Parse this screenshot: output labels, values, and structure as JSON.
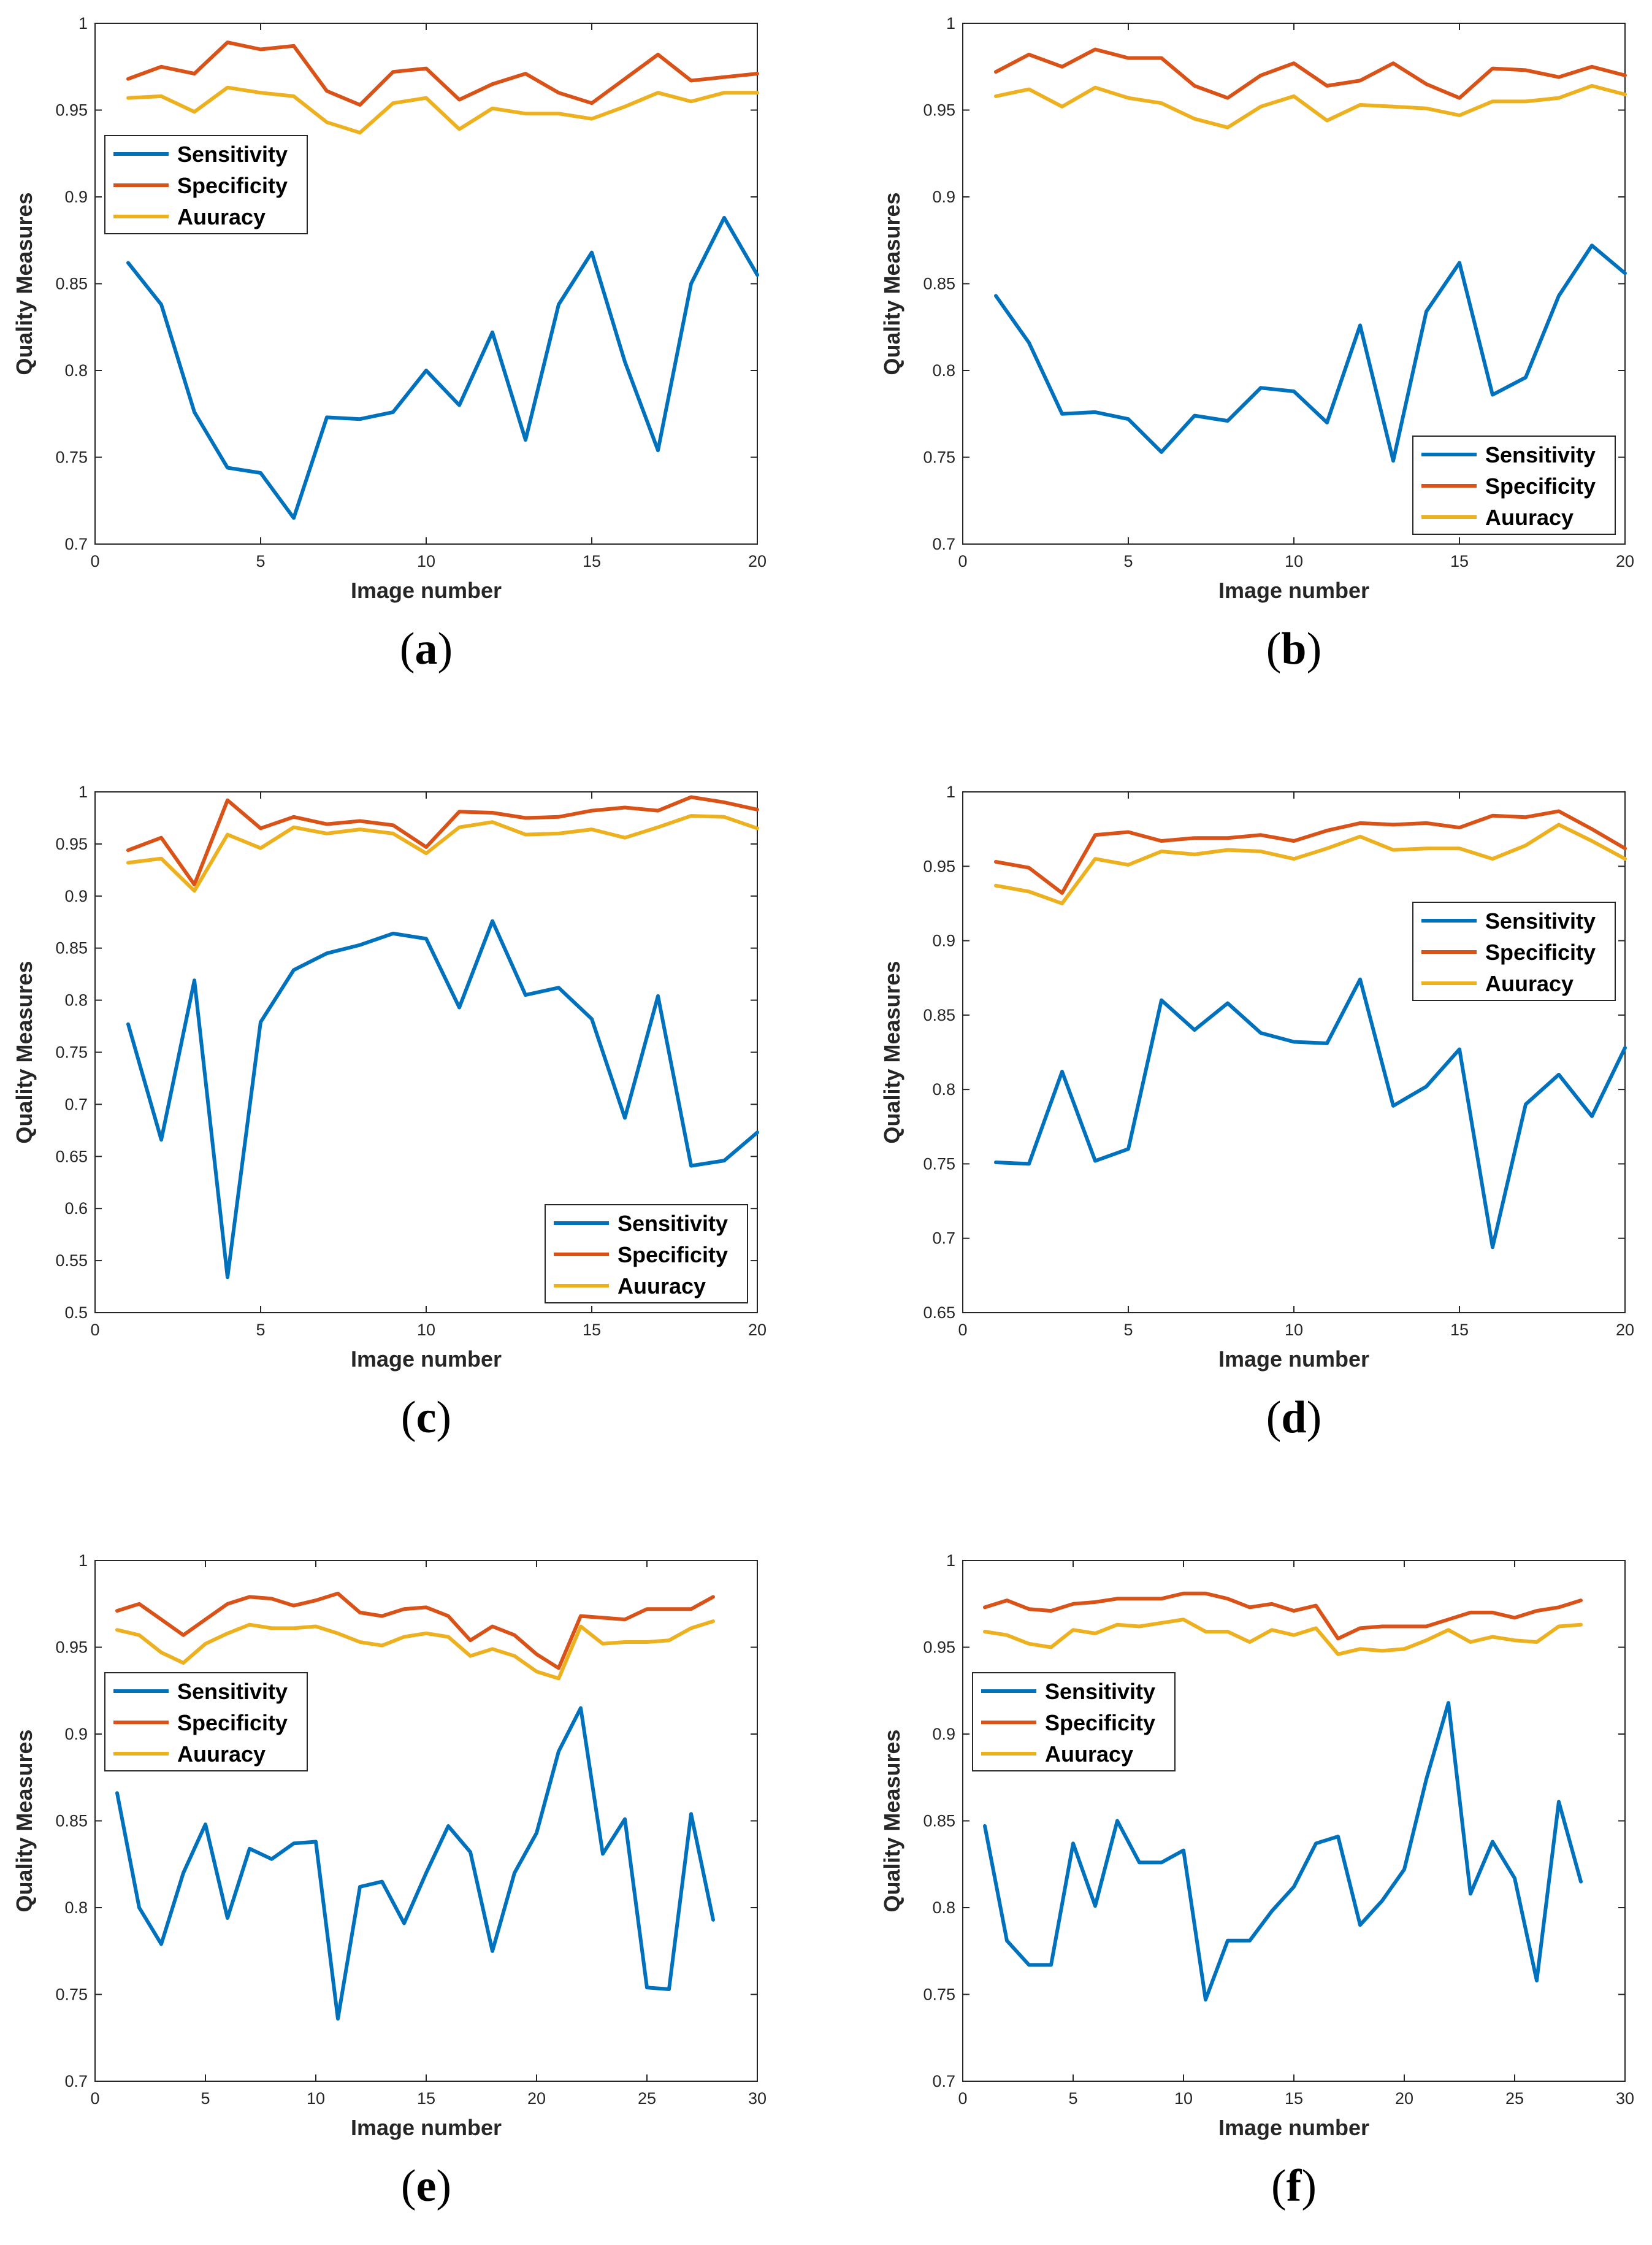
{
  "colors": {
    "sensitivity": "#0072BD",
    "specificity": "#D95319",
    "accuracy": "#EDB120",
    "axis": "#262626"
  },
  "chart_data": [
    {
      "type": "line",
      "panel_label": "a",
      "xlabel": "Image number",
      "ylabel": "Quality Measures",
      "xlim": [
        0,
        20
      ],
      "ylim": [
        0.7,
        1
      ],
      "xticks": [
        "0",
        "5",
        "10",
        "15",
        "20"
      ],
      "yticks": [
        "0.7",
        "0.75",
        "0.8",
        "0.85",
        "0.9",
        "0.95",
        "1"
      ],
      "legend_position": "left",
      "x": [
        1,
        2,
        3,
        4,
        5,
        6,
        7,
        8,
        9,
        10,
        11,
        12,
        13,
        14,
        15,
        16,
        17,
        18,
        19,
        20
      ],
      "series": [
        {
          "name": "Sensitivity",
          "values": [
            0.862,
            0.838,
            0.776,
            0.744,
            0.741,
            0.715,
            0.773,
            0.772,
            0.776,
            0.8,
            0.78,
            0.822,
            0.76,
            0.838,
            0.868,
            0.805,
            0.754,
            0.85,
            0.888,
            0.855
          ]
        },
        {
          "name": "Specificity",
          "values": [
            0.968,
            0.975,
            0.971,
            0.989,
            0.985,
            0.987,
            0.961,
            0.953,
            0.972,
            0.974,
            0.956,
            0.965,
            0.971,
            0.96,
            0.954,
            0.968,
            0.982,
            0.967,
            0.969,
            0.971
          ]
        },
        {
          "name": "Auuracy",
          "values": [
            0.957,
            0.958,
            0.949,
            0.963,
            0.96,
            0.958,
            0.943,
            0.937,
            0.954,
            0.957,
            0.939,
            0.951,
            0.948,
            0.948,
            0.945,
            0.952,
            0.96,
            0.955,
            0.96,
            0.96
          ]
        }
      ]
    },
    {
      "type": "line",
      "panel_label": "b",
      "xlabel": "Image number",
      "ylabel": "Quality Measures",
      "xlim": [
        0,
        20
      ],
      "ylim": [
        0.7,
        1
      ],
      "xticks": [
        "0",
        "5",
        "10",
        "15",
        "20"
      ],
      "yticks": [
        "0.7",
        "0.75",
        "0.8",
        "0.85",
        "0.9",
        "0.95",
        "1"
      ],
      "legend_position": "bottom-right",
      "x": [
        1,
        2,
        3,
        4,
        5,
        6,
        7,
        8,
        9,
        10,
        11,
        12,
        13,
        14,
        15,
        16,
        17,
        18,
        19,
        20
      ],
      "series": [
        {
          "name": "Sensitivity",
          "values": [
            0.843,
            0.816,
            0.775,
            0.776,
            0.772,
            0.753,
            0.774,
            0.771,
            0.79,
            0.788,
            0.77,
            0.826,
            0.748,
            0.834,
            0.862,
            0.786,
            0.796,
            0.843,
            0.872,
            0.856
          ]
        },
        {
          "name": "Specificity",
          "values": [
            0.972,
            0.982,
            0.975,
            0.985,
            0.98,
            0.98,
            0.964,
            0.957,
            0.97,
            0.977,
            0.964,
            0.967,
            0.977,
            0.965,
            0.957,
            0.974,
            0.973,
            0.969,
            0.975,
            0.97
          ]
        },
        {
          "name": "Auuracy",
          "values": [
            0.958,
            0.962,
            0.952,
            0.963,
            0.957,
            0.954,
            0.945,
            0.94,
            0.952,
            0.958,
            0.944,
            0.953,
            0.952,
            0.951,
            0.947,
            0.955,
            0.955,
            0.957,
            0.964,
            0.959
          ]
        }
      ]
    },
    {
      "type": "line",
      "panel_label": "c",
      "xlabel": "Image number",
      "ylabel": "Quality Measures",
      "xlim": [
        0,
        20
      ],
      "ylim": [
        0.5,
        1
      ],
      "xticks": [
        "0",
        "5",
        "10",
        "15",
        "20"
      ],
      "yticks": [
        "0.5",
        "0.55",
        "0.6",
        "0.65",
        "0.7",
        "0.75",
        "0.8",
        "0.85",
        "0.9",
        "0.95",
        "1"
      ],
      "legend_position": "bottom-right",
      "x": [
        1,
        2,
        3,
        4,
        5,
        6,
        7,
        8,
        9,
        10,
        11,
        12,
        13,
        14,
        15,
        16,
        17,
        18,
        19,
        20
      ],
      "series": [
        {
          "name": "Sensitivity",
          "values": [
            0.777,
            0.666,
            0.819,
            0.534,
            0.779,
            0.829,
            0.845,
            0.853,
            0.864,
            0.859,
            0.793,
            0.876,
            0.805,
            0.812,
            0.782,
            0.687,
            0.804,
            0.641,
            0.646,
            0.673
          ]
        },
        {
          "name": "Specificity",
          "values": [
            0.944,
            0.956,
            0.911,
            0.992,
            0.965,
            0.976,
            0.969,
            0.972,
            0.968,
            0.947,
            0.981,
            0.98,
            0.975,
            0.976,
            0.982,
            0.985,
            0.982,
            0.995,
            0.99,
            0.983
          ]
        },
        {
          "name": "Auuracy",
          "values": [
            0.932,
            0.936,
            0.905,
            0.959,
            0.946,
            0.966,
            0.96,
            0.964,
            0.96,
            0.941,
            0.966,
            0.971,
            0.959,
            0.96,
            0.964,
            0.956,
            0.966,
            0.977,
            0.976,
            0.965
          ]
        }
      ]
    },
    {
      "type": "line",
      "panel_label": "d",
      "xlabel": "Image number",
      "ylabel": "Quality Measures",
      "xlim": [
        0,
        20
      ],
      "ylim": [
        0.65,
        1
      ],
      "xticks": [
        "0",
        "5",
        "10",
        "15",
        "20"
      ],
      "yticks": [
        "0.65",
        "0.7",
        "0.75",
        "0.8",
        "0.85",
        "0.9",
        "0.95",
        "1"
      ],
      "legend_position": "right",
      "x": [
        1,
        2,
        3,
        4,
        5,
        6,
        7,
        8,
        9,
        10,
        11,
        12,
        13,
        14,
        15,
        16,
        17,
        18,
        19,
        20
      ],
      "series": [
        {
          "name": "Sensitivity",
          "values": [
            0.751,
            0.75,
            0.812,
            0.752,
            0.76,
            0.86,
            0.84,
            0.858,
            0.838,
            0.832,
            0.831,
            0.874,
            0.789,
            0.802,
            0.827,
            0.694,
            0.79,
            0.81,
            0.782,
            0.828
          ]
        },
        {
          "name": "Specificity",
          "values": [
            0.953,
            0.949,
            0.932,
            0.971,
            0.973,
            0.967,
            0.969,
            0.969,
            0.971,
            0.967,
            0.974,
            0.979,
            0.978,
            0.979,
            0.976,
            0.984,
            0.983,
            0.987,
            0.975,
            0.962
          ]
        },
        {
          "name": "Auuracy",
          "values": [
            0.937,
            0.933,
            0.925,
            0.955,
            0.951,
            0.96,
            0.958,
            0.961,
            0.96,
            0.955,
            0.962,
            0.97,
            0.961,
            0.962,
            0.962,
            0.955,
            0.964,
            0.978,
            0.967,
            0.955
          ]
        }
      ]
    },
    {
      "type": "line",
      "panel_label": "e",
      "xlabel": "Image number",
      "ylabel": "Quality Measures",
      "xlim": [
        0,
        30
      ],
      "ylim": [
        0.7,
        1
      ],
      "xticks": [
        "0",
        "5",
        "10",
        "15",
        "20",
        "25",
        "30"
      ],
      "yticks": [
        "0.7",
        "0.75",
        "0.8",
        "0.85",
        "0.9",
        "0.95",
        "1"
      ],
      "legend_position": "left",
      "x": [
        1,
        2,
        3,
        4,
        5,
        6,
        7,
        8,
        9,
        10,
        11,
        12,
        13,
        14,
        15,
        16,
        17,
        18,
        19,
        20,
        21,
        22,
        23,
        24,
        25,
        26,
        27,
        28
      ],
      "series": [
        {
          "name": "Sensitivity",
          "values": [
            0.866,
            0.8,
            0.779,
            0.82,
            0.848,
            0.794,
            0.834,
            0.828,
            0.837,
            0.838,
            0.736,
            0.812,
            0.815,
            0.791,
            0.82,
            0.847,
            0.832,
            0.775,
            0.82,
            0.843,
            0.89,
            0.915,
            0.831,
            0.851,
            0.754,
            0.753,
            0.854,
            0.793
          ]
        },
        {
          "name": "Specificity",
          "values": [
            0.971,
            0.975,
            0.966,
            0.957,
            0.966,
            0.975,
            0.979,
            0.978,
            0.974,
            0.977,
            0.981,
            0.97,
            0.968,
            0.972,
            0.973,
            0.968,
            0.954,
            0.962,
            0.957,
            0.946,
            0.938,
            0.968,
            0.967,
            0.966,
            0.972,
            0.972,
            0.972,
            0.979
          ]
        },
        {
          "name": "Auuracy",
          "values": [
            0.96,
            0.957,
            0.947,
            0.941,
            0.952,
            0.958,
            0.963,
            0.961,
            0.961,
            0.962,
            0.958,
            0.953,
            0.951,
            0.956,
            0.958,
            0.956,
            0.945,
            0.949,
            0.945,
            0.936,
            0.932,
            0.962,
            0.952,
            0.953,
            0.953,
            0.954,
            0.961,
            0.965
          ]
        }
      ]
    },
    {
      "type": "line",
      "panel_label": "f",
      "xlabel": "Image number",
      "ylabel": "Quality Measures",
      "xlim": [
        0,
        30
      ],
      "ylim": [
        0.7,
        1
      ],
      "xticks": [
        "0",
        "5",
        "10",
        "15",
        "20",
        "25",
        "30"
      ],
      "yticks": [
        "0.7",
        "0.75",
        "0.8",
        "0.85",
        "0.9",
        "0.95",
        "1"
      ],
      "legend_position": "left",
      "x": [
        1,
        2,
        3,
        4,
        5,
        6,
        7,
        8,
        9,
        10,
        11,
        12,
        13,
        14,
        15,
        16,
        17,
        18,
        19,
        20,
        21,
        22,
        23,
        24,
        25,
        26,
        27,
        28
      ],
      "series": [
        {
          "name": "Sensitivity",
          "values": [
            0.847,
            0.781,
            0.767,
            0.767,
            0.837,
            0.801,
            0.85,
            0.826,
            0.826,
            0.833,
            0.747,
            0.781,
            0.781,
            0.798,
            0.812,
            0.837,
            0.841,
            0.79,
            0.804,
            0.822,
            0.874,
            0.918,
            0.808,
            0.838,
            0.817,
            0.758,
            0.861,
            0.815
          ]
        },
        {
          "name": "Specificity",
          "values": [
            0.973,
            0.977,
            0.972,
            0.971,
            0.975,
            0.976,
            0.978,
            0.978,
            0.978,
            0.981,
            0.981,
            0.978,
            0.973,
            0.975,
            0.971,
            0.974,
            0.955,
            0.961,
            0.962,
            0.962,
            0.962,
            0.966,
            0.97,
            0.97,
            0.967,
            0.971,
            0.973,
            0.977
          ]
        },
        {
          "name": "Auuracy",
          "values": [
            0.959,
            0.957,
            0.952,
            0.95,
            0.96,
            0.958,
            0.963,
            0.962,
            0.964,
            0.966,
            0.959,
            0.959,
            0.953,
            0.96,
            0.957,
            0.961,
            0.946,
            0.949,
            0.948,
            0.949,
            0.954,
            0.96,
            0.953,
            0.956,
            0.954,
            0.953,
            0.962,
            0.963
          ]
        }
      ]
    }
  ]
}
